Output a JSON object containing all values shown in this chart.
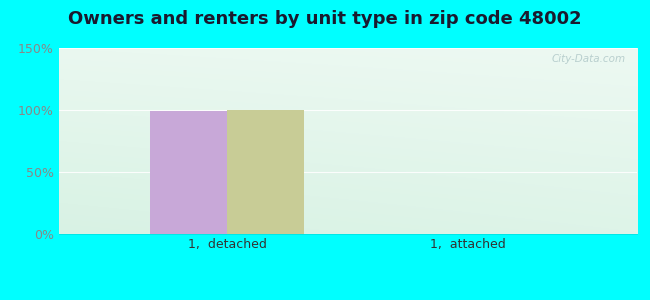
{
  "title": "Owners and renters by unit type in zip code 48002",
  "categories": [
    "1,  detached",
    "1,  attached"
  ],
  "owner_values": [
    99,
    0
  ],
  "renter_values": [
    100,
    0
  ],
  "owner_color": "#c8a8d8",
  "renter_color": "#c8cc96",
  "ylim": [
    0,
    150
  ],
  "yticks": [
    0,
    50,
    100,
    150
  ],
  "ytick_labels": [
    "0%",
    "50%",
    "100%",
    "150%"
  ],
  "bar_width": 0.32,
  "figure_bg": "#00ffff",
  "plot_bg_top": "#e8f5e8",
  "plot_bg_bottom": "#d8f0e8",
  "watermark": "City-Data.com",
  "title_fontsize": 13,
  "label_fontsize": 9,
  "tick_fontsize": 9,
  "tick_color": "#888888",
  "text_color": "#333333"
}
